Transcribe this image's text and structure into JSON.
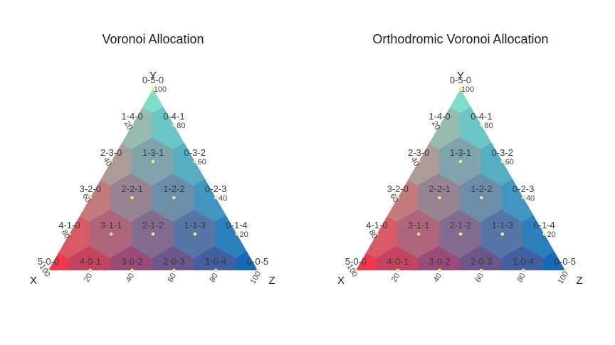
{
  "chart_data": [
    {
      "type": "ternary",
      "title": "Voronoi Allocation",
      "axes": {
        "corner_left": "X",
        "corner_top": "Y",
        "corner_right": "Z"
      },
      "ticks": {
        "bottom": [
          "20",
          "40",
          "60",
          "80",
          "100"
        ],
        "right": [
          "20",
          "40",
          "60",
          "80",
          "100"
        ],
        "left": [
          "20",
          "40",
          "60",
          "80",
          "100"
        ]
      },
      "points": [
        {
          "label": "5-0-0",
          "x": 5,
          "y": 0,
          "z": 0
        },
        {
          "label": "4-1-0",
          "x": 4,
          "y": 1,
          "z": 0
        },
        {
          "label": "4-0-1",
          "x": 4,
          "y": 0,
          "z": 1
        },
        {
          "label": "3-2-0",
          "x": 3,
          "y": 2,
          "z": 0
        },
        {
          "label": "3-1-1",
          "x": 3,
          "y": 1,
          "z": 1
        },
        {
          "label": "3-0-2",
          "x": 3,
          "y": 0,
          "z": 2
        },
        {
          "label": "2-3-0",
          "x": 2,
          "y": 3,
          "z": 0
        },
        {
          "label": "2-2-1",
          "x": 2,
          "y": 2,
          "z": 1
        },
        {
          "label": "2-1-2",
          "x": 2,
          "y": 1,
          "z": 2
        },
        {
          "label": "2-0-3",
          "x": 2,
          "y": 0,
          "z": 3
        },
        {
          "label": "1-4-0",
          "x": 1,
          "y": 4,
          "z": 0
        },
        {
          "label": "1-3-1",
          "x": 1,
          "y": 3,
          "z": 1
        },
        {
          "label": "1-2-2",
          "x": 1,
          "y": 2,
          "z": 2
        },
        {
          "label": "1-1-3",
          "x": 1,
          "y": 1,
          "z": 3
        },
        {
          "label": "1-0-4",
          "x": 1,
          "y": 0,
          "z": 4
        },
        {
          "label": "0-5-0",
          "x": 0,
          "y": 5,
          "z": 0
        },
        {
          "label": "0-4-1",
          "x": 0,
          "y": 4,
          "z": 1
        },
        {
          "label": "0-3-2",
          "x": 0,
          "y": 3,
          "z": 2
        },
        {
          "label": "0-2-3",
          "x": 0,
          "y": 2,
          "z": 3
        },
        {
          "label": "0-1-4",
          "x": 0,
          "y": 1,
          "z": 4
        },
        {
          "label": "0-0-5",
          "x": 0,
          "y": 0,
          "z": 5
        }
      ],
      "colors": {
        "x": "#f03a4b",
        "y": "#7fdcc8",
        "z": "#1668b8",
        "point": "#f2e97a"
      }
    },
    {
      "type": "ternary",
      "title": "Orthodromic Voronoi Allocation",
      "axes": {
        "corner_left": "X",
        "corner_top": "Y",
        "corner_right": "Z"
      },
      "ticks": {
        "bottom": [
          "20",
          "40",
          "60",
          "80",
          "100"
        ],
        "right": [
          "20",
          "40",
          "60",
          "80",
          "100"
        ],
        "left": [
          "20",
          "40",
          "60",
          "80",
          "100"
        ]
      },
      "points": [
        {
          "label": "5-0-0",
          "x": 5,
          "y": 0,
          "z": 0
        },
        {
          "label": "4-1-0",
          "x": 4,
          "y": 1,
          "z": 0
        },
        {
          "label": "4-0-1",
          "x": 4,
          "y": 0,
          "z": 1
        },
        {
          "label": "3-2-0",
          "x": 3,
          "y": 2,
          "z": 0
        },
        {
          "label": "3-1-1",
          "x": 3,
          "y": 1,
          "z": 1
        },
        {
          "label": "3-0-2",
          "x": 3,
          "y": 0,
          "z": 2
        },
        {
          "label": "2-3-0",
          "x": 2,
          "y": 3,
          "z": 0
        },
        {
          "label": "2-2-1",
          "x": 2,
          "y": 2,
          "z": 1
        },
        {
          "label": "2-1-2",
          "x": 2,
          "y": 1,
          "z": 2
        },
        {
          "label": "2-0-3",
          "x": 2,
          "y": 0,
          "z": 3
        },
        {
          "label": "1-4-0",
          "x": 1,
          "y": 4,
          "z": 0
        },
        {
          "label": "1-3-1",
          "x": 1,
          "y": 3,
          "z": 1
        },
        {
          "label": "1-2-2",
          "x": 1,
          "y": 2,
          "z": 2
        },
        {
          "label": "1-1-3",
          "x": 1,
          "y": 1,
          "z": 3
        },
        {
          "label": "1-0-4",
          "x": 1,
          "y": 0,
          "z": 4
        },
        {
          "label": "0-5-0",
          "x": 0,
          "y": 5,
          "z": 0
        },
        {
          "label": "0-4-1",
          "x": 0,
          "y": 4,
          "z": 1
        },
        {
          "label": "0-3-2",
          "x": 0,
          "y": 3,
          "z": 2
        },
        {
          "label": "0-2-3",
          "x": 0,
          "y": 2,
          "z": 3
        },
        {
          "label": "0-1-4",
          "x": 0,
          "y": 1,
          "z": 4
        },
        {
          "label": "0-0-5",
          "x": 0,
          "y": 0,
          "z": 5
        }
      ],
      "colors": {
        "x": "#f03a4b",
        "y": "#7fdcc8",
        "z": "#1668b8",
        "point": "#f2e97a"
      }
    }
  ]
}
